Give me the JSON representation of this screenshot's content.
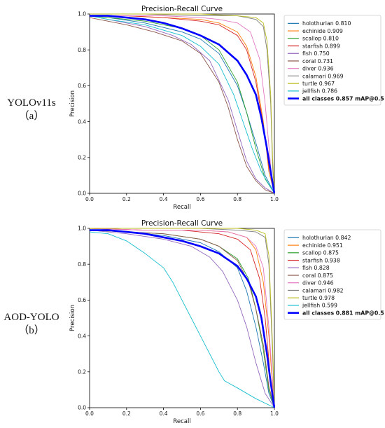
{
  "chart_data": [
    {
      "type": "line",
      "panel_label": "YOLOv11s",
      "panel_sub": "（a）",
      "title": "Precision-Recall Curve",
      "xlabel": "Recall",
      "ylabel": "Precision",
      "xlim": [
        0,
        1
      ],
      "ylim": [
        0,
        1
      ],
      "xticks": [
        "0.0",
        "0.2",
        "0.4",
        "0.6",
        "0.8",
        "1.0"
      ],
      "yticks": [
        "0.0",
        "0.2",
        "0.4",
        "0.6",
        "0.8",
        "1.0"
      ],
      "legend_position": "outside-right",
      "series": [
        {
          "name": "holothurian 0.810",
          "color": "#1f77b4",
          "x": [
            0,
            0.1,
            0.3,
            0.5,
            0.6,
            0.7,
            0.8,
            0.85,
            0.9,
            0.95,
            1.0
          ],
          "y": [
            0.99,
            0.98,
            0.95,
            0.9,
            0.86,
            0.78,
            0.6,
            0.45,
            0.28,
            0.1,
            0.0
          ]
        },
        {
          "name": "echinide 0.909",
          "color": "#ff7f0e",
          "x": [
            0,
            0.2,
            0.4,
            0.6,
            0.7,
            0.8,
            0.85,
            0.9,
            0.94,
            0.97,
            1.0
          ],
          "y": [
            0.99,
            0.99,
            0.98,
            0.97,
            0.95,
            0.9,
            0.82,
            0.65,
            0.4,
            0.12,
            0.0
          ]
        },
        {
          "name": "scallop 0.810",
          "color": "#2ca02c",
          "x": [
            0,
            0.1,
            0.3,
            0.5,
            0.6,
            0.7,
            0.8,
            0.85,
            0.9,
            0.95,
            1.0
          ],
          "y": [
            0.99,
            0.98,
            0.96,
            0.92,
            0.88,
            0.8,
            0.62,
            0.45,
            0.25,
            0.08,
            0.0
          ]
        },
        {
          "name": "starfish 0.899",
          "color": "#d62728",
          "x": [
            0,
            0.2,
            0.4,
            0.6,
            0.7,
            0.8,
            0.85,
            0.9,
            0.94,
            0.97,
            1.0
          ],
          "y": [
            0.99,
            0.99,
            0.98,
            0.96,
            0.94,
            0.88,
            0.8,
            0.62,
            0.38,
            0.15,
            0.0
          ]
        },
        {
          "name": "fish 0.750",
          "color": "#9467bd",
          "x": [
            0,
            0.1,
            0.3,
            0.45,
            0.55,
            0.65,
            0.75,
            0.8,
            0.85,
            0.9,
            0.95,
            1.0
          ],
          "y": [
            0.99,
            0.97,
            0.93,
            0.88,
            0.83,
            0.74,
            0.52,
            0.35,
            0.18,
            0.08,
            0.03,
            0.0
          ]
        },
        {
          "name": "coral 0.731",
          "color": "#8c564b",
          "x": [
            0,
            0.05,
            0.2,
            0.35,
            0.5,
            0.6,
            0.7,
            0.75,
            0.8,
            0.85,
            0.9,
            0.95,
            1.0
          ],
          "y": [
            0.98,
            0.97,
            0.94,
            0.9,
            0.85,
            0.78,
            0.62,
            0.48,
            0.3,
            0.15,
            0.07,
            0.02,
            0.0
          ]
        },
        {
          "name": "diver 0.936",
          "color": "#e377c2",
          "x": [
            0,
            0.2,
            0.4,
            0.6,
            0.7,
            0.8,
            0.87,
            0.92,
            0.95,
            0.98,
            1.0
          ],
          "y": [
            0.99,
            0.99,
            0.99,
            0.98,
            0.97,
            0.95,
            0.9,
            0.75,
            0.5,
            0.15,
            0.0
          ]
        },
        {
          "name": "calamari 0.969",
          "color": "#7f7f7f",
          "x": [
            0,
            0.3,
            0.6,
            0.8,
            0.9,
            0.94,
            0.96,
            0.98,
            0.99,
            1.0
          ],
          "y": [
            1.0,
            1.0,
            0.99,
            0.99,
            0.97,
            0.93,
            0.8,
            0.5,
            0.15,
            0.0
          ]
        },
        {
          "name": "turtle 0.967",
          "color": "#bcbd22",
          "x": [
            0,
            0.3,
            0.6,
            0.8,
            0.9,
            0.94,
            0.96,
            0.98,
            0.99,
            1.0
          ],
          "y": [
            1.0,
            1.0,
            1.0,
            0.99,
            0.98,
            0.95,
            0.85,
            0.55,
            0.2,
            0.0
          ]
        },
        {
          "name": "jellfish 0.786",
          "color": "#17becf",
          "x": [
            0,
            0.1,
            0.3,
            0.5,
            0.6,
            0.7,
            0.78,
            0.83,
            0.88,
            0.93,
            0.97,
            1.0
          ],
          "y": [
            0.99,
            0.97,
            0.94,
            0.88,
            0.82,
            0.72,
            0.55,
            0.4,
            0.25,
            0.12,
            0.05,
            0.0
          ]
        },
        {
          "name": "all classes 0.857 mAP@0.5",
          "color": "#0000ff",
          "bold": true,
          "x": [
            0,
            0.1,
            0.2,
            0.3,
            0.4,
            0.5,
            0.6,
            0.7,
            0.8,
            0.85,
            0.9,
            0.93,
            0.96,
            0.98,
            1.0
          ],
          "y": [
            0.99,
            0.99,
            0.98,
            0.97,
            0.95,
            0.92,
            0.88,
            0.83,
            0.74,
            0.66,
            0.55,
            0.42,
            0.25,
            0.12,
            0.0
          ]
        }
      ]
    },
    {
      "type": "line",
      "panel_label": "AOD-YOLO",
      "panel_sub": "（b）",
      "title": "Precision-Recall Curve",
      "xlabel": "Recall",
      "ylabel": "Precision",
      "xlim": [
        0,
        1
      ],
      "ylim": [
        0,
        1
      ],
      "xticks": [
        "0.0",
        "0.2",
        "0.4",
        "0.6",
        "0.8",
        "1.0"
      ],
      "yticks": [
        "0.0",
        "0.2",
        "0.4",
        "0.6",
        "0.8",
        "1.0"
      ],
      "legend_position": "outside-right",
      "series": [
        {
          "name": "holothurian 0.842",
          "color": "#1f77b4",
          "x": [
            0,
            0.2,
            0.4,
            0.6,
            0.7,
            0.8,
            0.85,
            0.9,
            0.94,
            0.97,
            1.0
          ],
          "y": [
            0.99,
            0.98,
            0.96,
            0.92,
            0.87,
            0.78,
            0.65,
            0.45,
            0.25,
            0.08,
            0.0
          ]
        },
        {
          "name": "echinide 0.951",
          "color": "#ff7f0e",
          "x": [
            0,
            0.3,
            0.6,
            0.75,
            0.85,
            0.9,
            0.94,
            0.97,
            0.99,
            1.0
          ],
          "y": [
            1.0,
            0.99,
            0.99,
            0.98,
            0.95,
            0.88,
            0.7,
            0.4,
            0.12,
            0.0
          ]
        },
        {
          "name": "scallop 0.875",
          "color": "#2ca02c",
          "x": [
            0,
            0.2,
            0.4,
            0.6,
            0.7,
            0.8,
            0.86,
            0.9,
            0.94,
            0.97,
            1.0
          ],
          "y": [
            0.99,
            0.98,
            0.97,
            0.94,
            0.9,
            0.83,
            0.72,
            0.55,
            0.32,
            0.1,
            0.0
          ]
        },
        {
          "name": "starfish 0.938",
          "color": "#d62728",
          "x": [
            0,
            0.3,
            0.5,
            0.7,
            0.8,
            0.87,
            0.92,
            0.95,
            0.98,
            1.0
          ],
          "y": [
            1.0,
            0.99,
            0.99,
            0.97,
            0.94,
            0.88,
            0.72,
            0.5,
            0.15,
            0.0
          ]
        },
        {
          "name": "fish 0.828",
          "color": "#9467bd",
          "x": [
            0,
            0.2,
            0.4,
            0.55,
            0.65,
            0.72,
            0.8,
            0.85,
            0.9,
            0.95,
            1.0
          ],
          "y": [
            0.99,
            0.97,
            0.94,
            0.9,
            0.84,
            0.76,
            0.6,
            0.45,
            0.25,
            0.08,
            0.0
          ]
        },
        {
          "name": "coral 0.875",
          "color": "#8c564b",
          "x": [
            0,
            0.2,
            0.4,
            0.6,
            0.7,
            0.8,
            0.86,
            0.9,
            0.94,
            0.97,
            1.0
          ],
          "y": [
            0.99,
            0.98,
            0.97,
            0.94,
            0.9,
            0.82,
            0.7,
            0.55,
            0.35,
            0.12,
            0.0
          ]
        },
        {
          "name": "diver 0.946",
          "color": "#e377c2",
          "x": [
            0,
            0.3,
            0.6,
            0.75,
            0.85,
            0.9,
            0.94,
            0.97,
            0.99,
            1.0
          ],
          "y": [
            1.0,
            0.99,
            0.99,
            0.98,
            0.95,
            0.9,
            0.78,
            0.45,
            0.15,
            0.0
          ]
        },
        {
          "name": "calamari 0.982",
          "color": "#7f7f7f",
          "x": [
            0,
            0.3,
            0.6,
            0.8,
            0.9,
            0.95,
            0.97,
            0.99,
            1.0
          ],
          "y": [
            1.0,
            1.0,
            1.0,
            0.99,
            0.98,
            0.95,
            0.8,
            0.3,
            0.0
          ]
        },
        {
          "name": "turtle 0.978",
          "color": "#bcbd22",
          "x": [
            0,
            0.3,
            0.6,
            0.8,
            0.9,
            0.95,
            0.97,
            0.99,
            1.0
          ],
          "y": [
            1.0,
            1.0,
            1.0,
            1.0,
            0.99,
            0.97,
            0.85,
            0.35,
            0.0
          ]
        },
        {
          "name": "jellfish 0.599",
          "color": "#17becf",
          "x": [
            0,
            0.1,
            0.2,
            0.3,
            0.4,
            0.45,
            0.5,
            0.55,
            0.6,
            0.65,
            0.7,
            0.73,
            0.8,
            0.9,
            1.0
          ],
          "y": [
            0.98,
            0.97,
            0.93,
            0.86,
            0.78,
            0.7,
            0.6,
            0.5,
            0.4,
            0.3,
            0.2,
            0.15,
            0.11,
            0.05,
            0.0
          ]
        },
        {
          "name": "all classes 0.881 mAP@0.5",
          "color": "#0000ff",
          "bold": true,
          "x": [
            0,
            0.1,
            0.2,
            0.3,
            0.4,
            0.5,
            0.6,
            0.7,
            0.8,
            0.85,
            0.9,
            0.93,
            0.96,
            0.98,
            1.0
          ],
          "y": [
            0.99,
            0.99,
            0.98,
            0.97,
            0.95,
            0.93,
            0.9,
            0.86,
            0.79,
            0.72,
            0.62,
            0.5,
            0.3,
            0.14,
            0.0
          ]
        }
      ]
    }
  ]
}
